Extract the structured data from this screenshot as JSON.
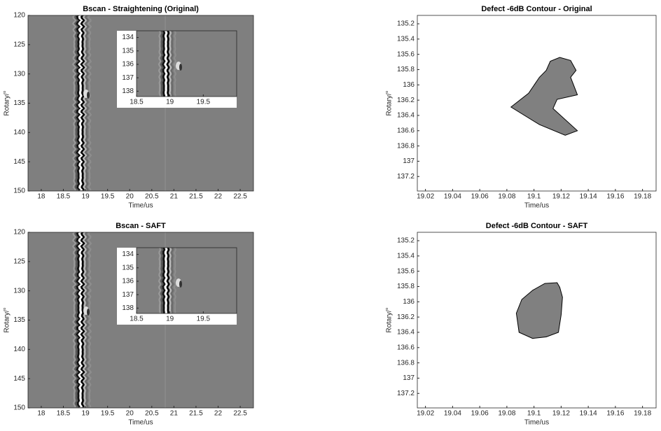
{
  "chart_data": [
    {
      "type": "image",
      "title": "Bscan - Straightening (Original)",
      "xlabel": "Time/us",
      "ylabel": "Rotary/°",
      "xlim": [
        17.7,
        22.8
      ],
      "ylim": [
        120,
        150
      ],
      "xticks": [
        18,
        18.5,
        19,
        19.5,
        20,
        20.5,
        21,
        21.5,
        22,
        22.5
      ],
      "yticks": [
        120,
        125,
        130,
        135,
        140,
        145,
        150
      ],
      "inset": {
        "xlim": [
          18.5,
          20
        ],
        "ylim": [
          133.5,
          138.4
        ],
        "xticks": [
          18.5,
          19,
          19.5
        ],
        "yticks": [
          134,
          135,
          136,
          137,
          138
        ]
      }
    },
    {
      "type": "area",
      "title": "Defect -6dB Contour - Original",
      "xlabel": "Time/us",
      "ylabel": "Rotary/°",
      "color": "#808080",
      "xlim": [
        19.014,
        19.19
      ],
      "ylim": [
        135.09,
        137.39
      ],
      "xticks": [
        19.02,
        19.04,
        19.06,
        19.08,
        19.1,
        19.12,
        19.14,
        19.16,
        19.18
      ],
      "yticks": [
        135.2,
        135.4,
        135.6,
        135.8,
        136,
        136.2,
        136.4,
        136.6,
        136.8,
        137,
        137.2
      ],
      "x": [
        19.083,
        19.096,
        19.104,
        19.109,
        19.112,
        19.119,
        19.127,
        19.131,
        19.127,
        19.132,
        19.117,
        19.114,
        19.132,
        19.123,
        19.104
      ],
      "values": [
        136.29,
        136.11,
        135.9,
        135.81,
        135.69,
        135.64,
        135.68,
        135.81,
        135.9,
        136.13,
        136.19,
        136.31,
        136.6,
        136.66,
        136.52
      ]
    },
    {
      "type": "image",
      "title": "Bscan - SAFT",
      "xlabel": "Time/us",
      "ylabel": "Rotary/°",
      "xlim": [
        17.7,
        22.8
      ],
      "ylim": [
        120,
        150
      ],
      "xticks": [
        18,
        18.5,
        19,
        19.5,
        20,
        20.5,
        21,
        21.5,
        22,
        22.5
      ],
      "yticks": [
        120,
        125,
        130,
        135,
        140,
        145,
        150
      ],
      "inset": {
        "xlim": [
          18.5,
          20
        ],
        "ylim": [
          133.5,
          138.4
        ],
        "xticks": [
          18.5,
          19,
          19.5
        ],
        "yticks": [
          134,
          135,
          136,
          137,
          138
        ]
      }
    },
    {
      "type": "area",
      "title": "Defect -6dB Contour - SAFT",
      "xlabel": "Time/us",
      "ylabel": "Rotary/°",
      "color": "#808080",
      "xlim": [
        19.014,
        19.19
      ],
      "ylim": [
        135.09,
        137.39
      ],
      "xticks": [
        19.02,
        19.04,
        19.06,
        19.08,
        19.1,
        19.12,
        19.14,
        19.16,
        19.18
      ],
      "yticks": [
        135.2,
        135.4,
        135.6,
        135.8,
        136,
        136.2,
        136.4,
        136.6,
        136.8,
        137,
        137.2
      ],
      "x": [
        19.087,
        19.091,
        19.099,
        19.108,
        19.117,
        19.119,
        19.121,
        19.12,
        19.118,
        19.109,
        19.099,
        19.089
      ],
      "values": [
        136.15,
        135.97,
        135.85,
        135.76,
        135.75,
        135.81,
        135.94,
        136.17,
        136.4,
        136.46,
        136.48,
        136.4
      ]
    }
  ]
}
